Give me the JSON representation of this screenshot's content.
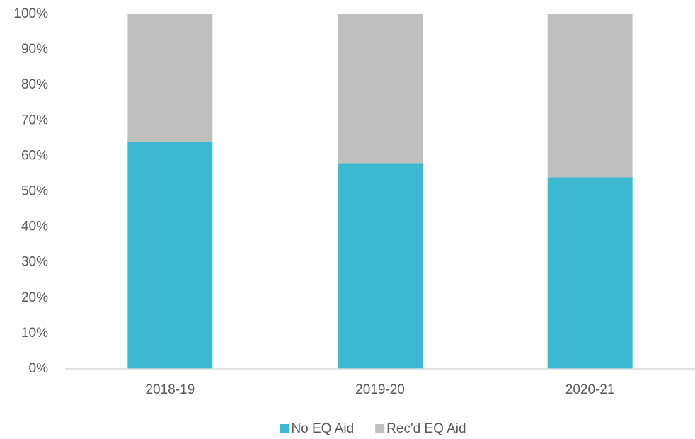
{
  "chart_data": {
    "type": "stacked_bar",
    "categories": [
      "2018-19",
      "2019-20",
      "2020-21"
    ],
    "series": [
      {
        "name": "No EQ Aid",
        "color": "#3db8d1",
        "values": [
          64,
          58,
          54
        ]
      },
      {
        "name": "Rec'd EQ Aid",
        "color": "#bfbfbf",
        "values": [
          36,
          42,
          46
        ]
      }
    ],
    "ylim": [
      0,
      100
    ],
    "yticks": [
      {
        "value": 0,
        "label": "0%"
      },
      {
        "value": 10,
        "label": "10%"
      },
      {
        "value": 20,
        "label": "20%"
      },
      {
        "value": 30,
        "label": "30%"
      },
      {
        "value": 40,
        "label": "40%"
      },
      {
        "value": 50,
        "label": "50%"
      },
      {
        "value": 60,
        "label": "60%"
      },
      {
        "value": 70,
        "label": "70%"
      },
      {
        "value": 80,
        "label": "80%"
      },
      {
        "value": 90,
        "label": "90%"
      },
      {
        "value": 100,
        "label": "100%"
      }
    ],
    "grid": false,
    "legend": "bottom"
  }
}
